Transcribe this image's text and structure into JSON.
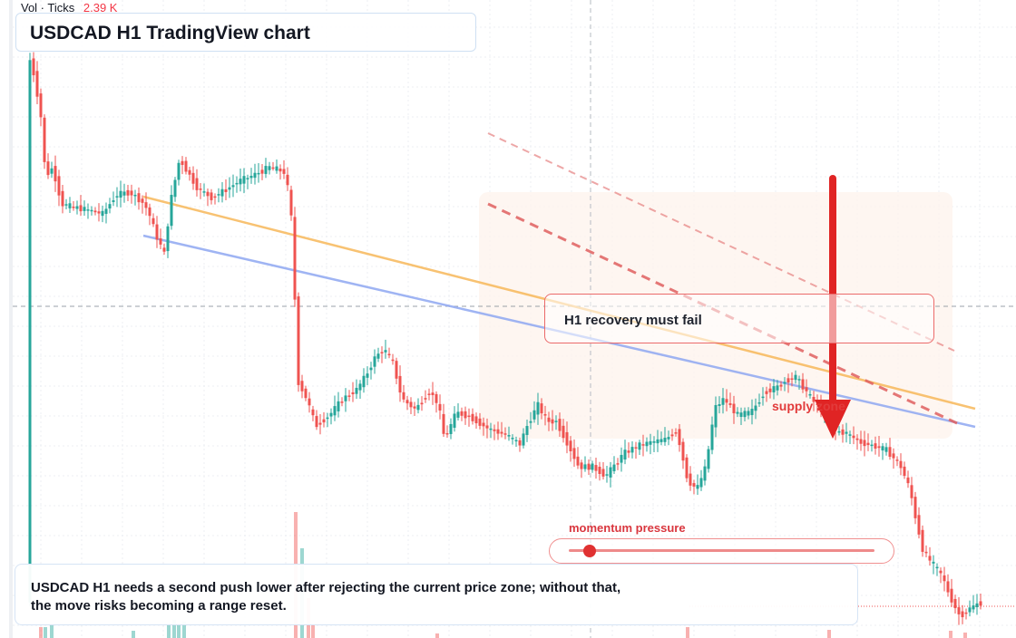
{
  "header": {
    "volume_label": "Vol · Ticks",
    "volume_value": "2.39 K",
    "title": "USDCAD H1 TradingView chart"
  },
  "annotations": {
    "recovery_label": "H1 recovery must fail",
    "supply_label": "supply zone",
    "momentum_label": "momentum pressure",
    "momentum_level": 0.05,
    "note_line1": "USDCAD H1 needs a second push lower after rejecting the current price zone; without that,",
    "note_line2": "the move risks becoming a range reset."
  },
  "colors": {
    "up": "#26a69a",
    "down": "#ef5350",
    "accent_red": "#e02424",
    "trend_orange": "#f7b85a",
    "trend_blue": "#8fa8f2",
    "channel_red": "#e06060"
  }
}
